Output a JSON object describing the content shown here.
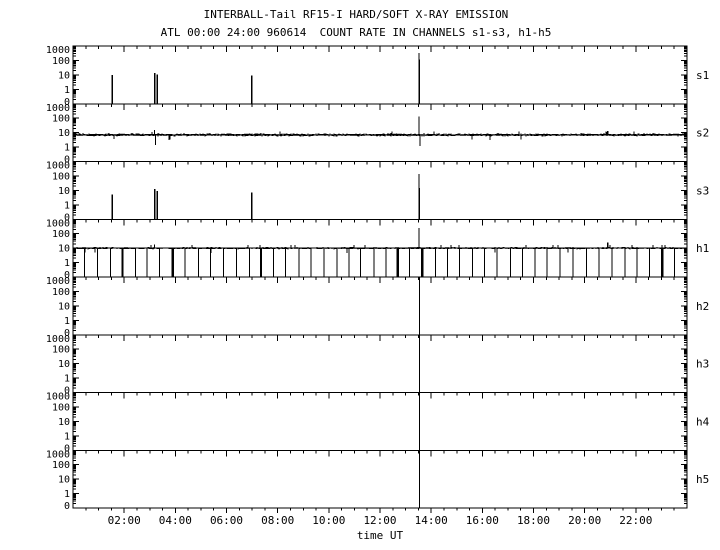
{
  "figure": {
    "background_color": "#ffffff",
    "ink_color": "#000000"
  },
  "chart_data": {
    "type": "line",
    "title": "INTERBALL-Tail RF15-I HARD/SOFT X-RAY EMISSION",
    "subtitle": "ATL 00:00 24:00 960614  COUNT RATE IN CHANNELS s1-s3, h1-h5",
    "xlabel": "time UT",
    "x_unit": "hours UT",
    "xlim": [
      0,
      24
    ],
    "x_major_tick_hours": 2,
    "x_minor_tick_hours": 0.5,
    "x_tick_labels": [
      "02:00",
      "04:00",
      "06:00",
      "08:00",
      "10:00",
      "12:00",
      "14:00",
      "16:00",
      "18:00",
      "20:00",
      "22:00"
    ],
    "y_scale": "log",
    "ylim": [
      0,
      1000
    ],
    "y_tick_labels": [
      "1000",
      "100",
      "10",
      "1",
      "0"
    ],
    "y_unit": "count rate",
    "grid": false,
    "legend": "none",
    "panels": [
      {
        "label": "s1",
        "kind": "quiet",
        "spikes": [
          {
            "t": 1.54,
            "v": 10
          },
          {
            "t": 3.19,
            "v": 13
          },
          {
            "t": 3.3,
            "v": 11
          },
          {
            "t": 6.99,
            "v": 9
          },
          {
            "t": 13.53,
            "v": 120,
            "tip": 320
          }
        ]
      },
      {
        "label": "s2",
        "kind": "noisy",
        "band_center": 7,
        "band_spread_log": 0.09,
        "noise_seed": 42,
        "events": [
          {
            "t": 3.19,
            "up": 15,
            "down": 1.4
          },
          {
            "t": 13.53,
            "up": 130,
            "down": 1.2
          },
          {
            "t": 20.9,
            "up": 13
          }
        ]
      },
      {
        "label": "s3",
        "kind": "quiet",
        "spikes": [
          {
            "t": 1.54,
            "v": 5
          },
          {
            "t": 3.19,
            "v": 12
          },
          {
            "t": 3.3,
            "v": 9
          },
          {
            "t": 6.99,
            "v": 7
          },
          {
            "t": 13.53,
            "v": 15,
            "tip": 140
          }
        ]
      },
      {
        "label": "h1",
        "kind": "noisy",
        "band_center": 10,
        "band_spread_log": 0.05,
        "noise_seed": 7,
        "dips": {
          "start": 0.45,
          "interval": 0.49,
          "to": 0,
          "thick_at": [
            2.08,
            3.7,
            7.23,
            12.6,
            13.78,
            22.9
          ]
        },
        "events": [
          {
            "t": 3.19,
            "up": 18
          },
          {
            "t": 13.53,
            "up": 250
          },
          {
            "t": 20.9,
            "up": 25
          }
        ]
      },
      {
        "label": "h2",
        "kind": "empty",
        "event_line_t": 13.55
      },
      {
        "label": "h3",
        "kind": "empty",
        "event_line_t": 13.55
      },
      {
        "label": "h4",
        "kind": "empty",
        "event_line_t": 13.55
      },
      {
        "label": "h5",
        "kind": "empty",
        "event_line_t": 13.55
      }
    ]
  }
}
